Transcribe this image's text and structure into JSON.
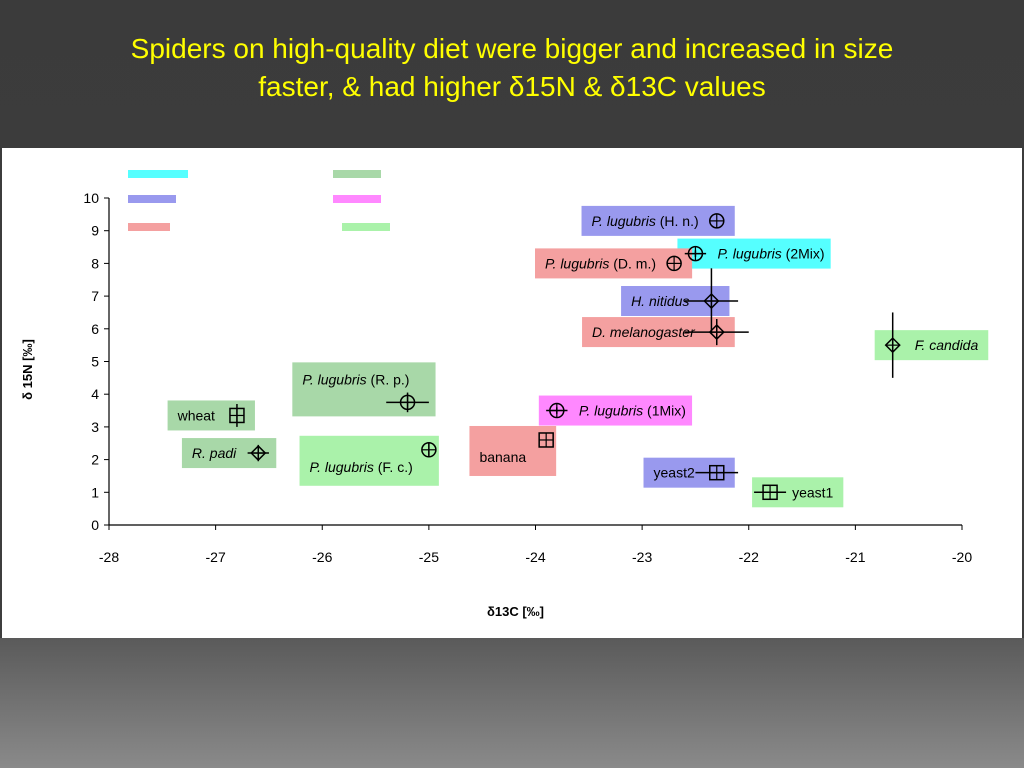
{
  "slide": {
    "title_line1": "Spiders on high-quality diet were bigger and increased in size",
    "title_line2": "faster, & had higher δ15N & δ13C values"
  },
  "colors": {
    "title": "#ffff00",
    "cyan": "#55ffff",
    "blue": "#9999ee",
    "red": "#f4a0a0",
    "green": "#a8d8a8",
    "magenta": "#ff88ff",
    "light_green": "#aaf2aa"
  },
  "legend_swatches": [
    "cyan",
    "blue",
    "red",
    "green",
    "magenta",
    "light_green"
  ],
  "chart_data": {
    "type": "scatter",
    "title": "",
    "xlabel": "δ13C [‰]",
    "ylabel": "δ 15N [‰]",
    "xlim": [
      -28,
      -20
    ],
    "ylim": [
      0,
      10
    ],
    "xticks": [
      -28,
      -27,
      -26,
      -25,
      -24,
      -23,
      -22,
      -21,
      -20
    ],
    "yticks": [
      0,
      1,
      2,
      3,
      4,
      5,
      6,
      7,
      8,
      9,
      10
    ],
    "grid": false,
    "points": [
      {
        "label": "wheat",
        "label_italic": "",
        "label_rest": "wheat",
        "x": -26.8,
        "y": 3.35,
        "marker": "square",
        "color": "green",
        "label_side": "left",
        "xerr": 0,
        "yerr": 0.35
      },
      {
        "label": "R. padi",
        "label_italic": "R. padi",
        "label_rest": "",
        "x": -26.6,
        "y": 2.2,
        "marker": "diamond",
        "color": "green",
        "label_side": "left",
        "xerr": 0.1,
        "yerr": 0.25
      },
      {
        "label": "P. lugubris (R. p.)",
        "label_italic": "P. lugubris",
        "label_rest": " (R. p.)",
        "x": -25.2,
        "y": 3.75,
        "marker": "circle",
        "color": "green",
        "label_side": "above-left",
        "xerr": 0.2,
        "yerr": 0.3
      },
      {
        "label": "P. lugubris (F. c.)",
        "label_italic": "P. lugubris",
        "label_rest": " (F. c.)",
        "x": -25.0,
        "y": 2.3,
        "marker": "circle",
        "color": "light_green",
        "label_side": "below-left",
        "xerr": 0,
        "yerr": 0.2
      },
      {
        "label": "banana",
        "label_italic": "",
        "label_rest": "banana",
        "x": -23.9,
        "y": 2.6,
        "marker": "square",
        "color": "red",
        "label_side": "below-left",
        "xerr": 0,
        "yerr": 0
      },
      {
        "label": "P. lugubris (1Mix)",
        "label_italic": "P. lugubris",
        "label_rest": " (1Mix)",
        "x": -23.8,
        "y": 3.5,
        "marker": "circle",
        "color": "magenta",
        "label_side": "right",
        "xerr": 0.1,
        "yerr": 0.1
      },
      {
        "label": "P. lugubris (H. n.)",
        "label_italic": "P. lugubris",
        "label_rest": " (H. n.)",
        "x": -22.3,
        "y": 9.3,
        "marker": "circle",
        "color": "blue",
        "label_side": "left",
        "xerr": 0,
        "yerr": 0
      },
      {
        "label": "P. lugubris (2Mix)",
        "label_italic": "P. lugubris",
        "label_rest": " (2Mix)",
        "x": -22.5,
        "y": 8.3,
        "marker": "circle",
        "color": "cyan",
        "label_side": "right",
        "xerr": 0.1,
        "yerr": 0.1
      },
      {
        "label": "P. lugubris (D. m.)",
        "label_italic": "P. lugubris",
        "label_rest": " (D. m.)",
        "x": -22.7,
        "y": 8.0,
        "marker": "circle",
        "color": "red",
        "label_side": "left",
        "xerr": 0,
        "yerr": 0
      },
      {
        "label": "H. nitidus",
        "label_italic": "H. nitidus",
        "label_rest": "",
        "x": -22.35,
        "y": 6.85,
        "marker": "diamond",
        "color": "blue",
        "label_side": "left",
        "xerr": 0.25,
        "yerr": 1.0
      },
      {
        "label": "D. melanogaster",
        "label_italic": "D. melanogaster",
        "label_rest": "",
        "x": -22.3,
        "y": 5.9,
        "marker": "diamond",
        "color": "red",
        "label_side": "left",
        "xerr": 0.3,
        "yerr": 0.4
      },
      {
        "label": "yeast2",
        "label_italic": "",
        "label_rest": "yeast2",
        "x": -22.3,
        "y": 1.6,
        "marker": "square",
        "color": "blue",
        "label_side": "left",
        "xerr": 0.2,
        "yerr": 0
      },
      {
        "label": "yeast1",
        "label_italic": "",
        "label_rest": "yeast1",
        "x": -21.8,
        "y": 1.0,
        "marker": "square",
        "color": "light_green",
        "label_side": "right",
        "xerr": 0.15,
        "yerr": 0
      },
      {
        "label": "F. candida",
        "label_italic": "F. candida",
        "label_rest": "",
        "x": -20.65,
        "y": 5.5,
        "marker": "diamond",
        "color": "light_green",
        "label_side": "right",
        "xerr": 0,
        "yerr": 1.0
      }
    ]
  }
}
